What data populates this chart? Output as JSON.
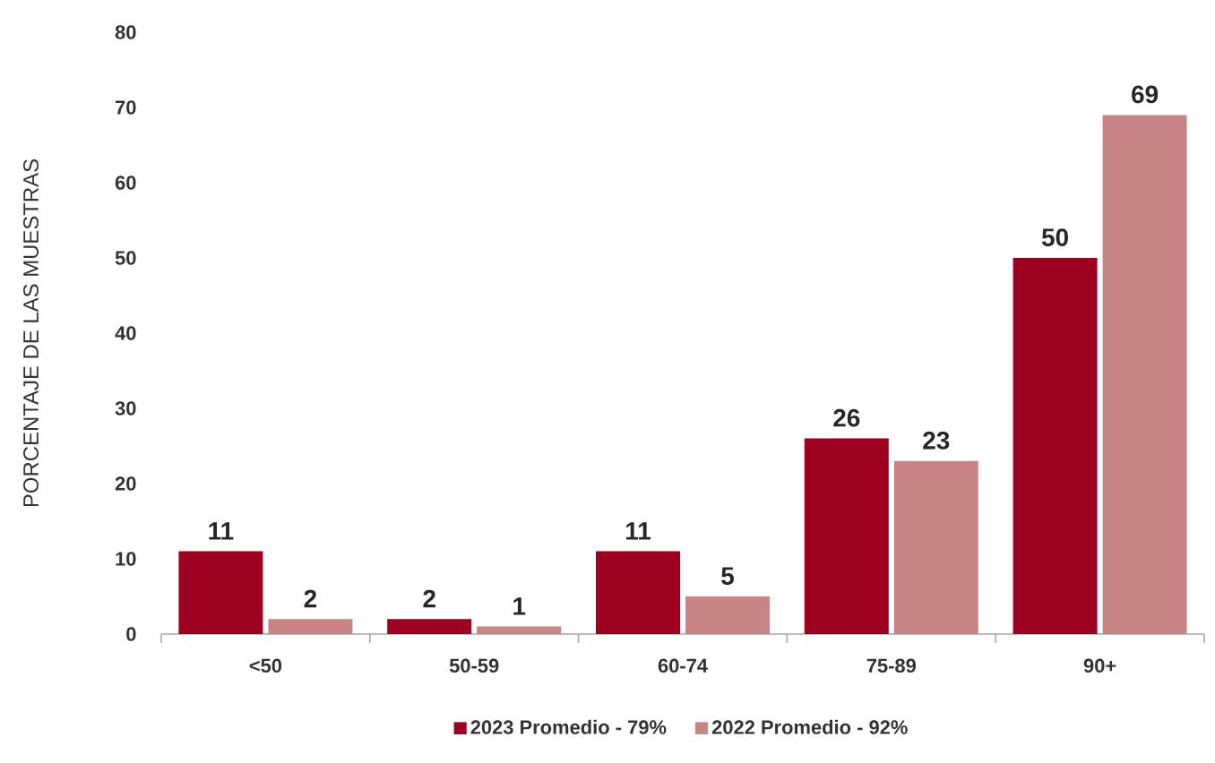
{
  "chart_data": {
    "type": "bar",
    "ylabel": "PORCENTAJE DE LAS MUESTRAS",
    "categories": [
      "<50",
      "50-59",
      "60-74",
      "75-89",
      "90+"
    ],
    "series": [
      {
        "name": "2023 Promedio - 79%",
        "color": "#9e0020",
        "values": [
          11,
          2,
          11,
          26,
          50
        ]
      },
      {
        "name": "2022 Promedio - 92%",
        "color": "#c98486",
        "values": [
          2,
          1,
          5,
          23,
          69
        ]
      }
    ],
    "ylim": [
      0,
      80
    ],
    "yticks": [
      0,
      10,
      20,
      30,
      40,
      50,
      60,
      70,
      80
    ],
    "data_labels": true,
    "legend": "bottom",
    "grid": false
  }
}
